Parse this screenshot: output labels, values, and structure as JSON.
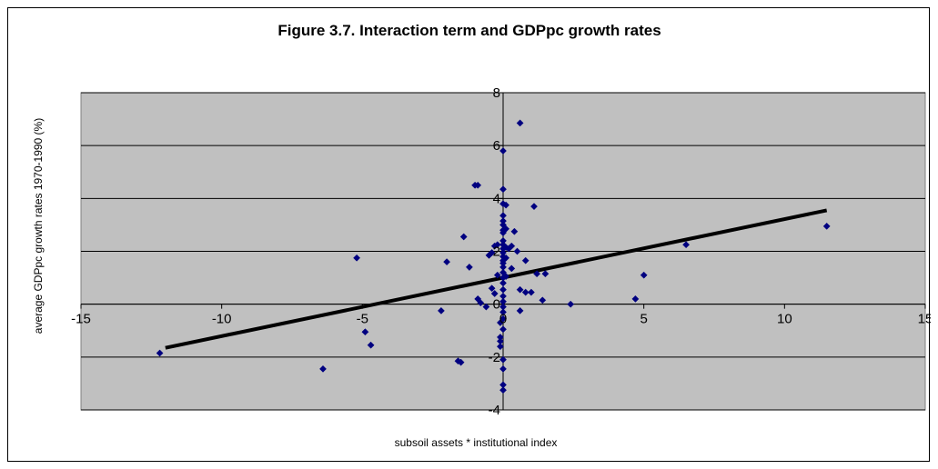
{
  "chart_data": {
    "type": "scatter",
    "title": "Figure 3.7. Interaction term and GDPpc growth rates",
    "xlabel": "subsoil assets * institutional index",
    "ylabel": "average GDPpc growth rates 1970-1990 (%)",
    "xlim": [
      -15,
      15
    ],
    "ylim": [
      -4,
      8
    ],
    "x_ticks": [
      -15,
      -10,
      -5,
      0,
      5,
      10,
      15
    ],
    "y_ticks": [
      -4,
      -2,
      0,
      2,
      4,
      6,
      8
    ],
    "x_tick_labels": [
      "-15",
      "-10",
      "-5",
      "0",
      "5",
      "10",
      "15"
    ],
    "y_tick_labels": [
      "-4",
      "-2",
      "0",
      "2",
      "4",
      "6",
      "8"
    ],
    "grid": "horizontal major gridlines",
    "legend": "none",
    "colors": {
      "plot_area": "#c0c0c0",
      "points": "#000080",
      "trend_line": "#000000",
      "gridlines": "#000000"
    },
    "series": [
      {
        "type": "scatter",
        "points": [
          [
            -12.2,
            -1.85
          ],
          [
            -6.4,
            -2.45
          ],
          [
            -5.2,
            1.75
          ],
          [
            -4.9,
            -1.05
          ],
          [
            -4.7,
            -1.55
          ],
          [
            -2.2,
            -0.25
          ],
          [
            -2.0,
            1.6
          ],
          [
            -1.6,
            -2.15
          ],
          [
            -1.5,
            -2.2
          ],
          [
            -1.4,
            2.55
          ],
          [
            -1.2,
            1.4
          ],
          [
            -1.0,
            4.5
          ],
          [
            -0.9,
            4.5
          ],
          [
            -0.9,
            0.2
          ],
          [
            -0.8,
            0.05
          ],
          [
            -0.6,
            -0.1
          ],
          [
            -0.5,
            1.85
          ],
          [
            -0.4,
            1.95
          ],
          [
            -0.4,
            0.6
          ],
          [
            -0.3,
            2.2
          ],
          [
            -0.3,
            0.4
          ],
          [
            -0.2,
            1.1
          ],
          [
            -0.2,
            2.25
          ],
          [
            -0.1,
            -0.7
          ],
          [
            -0.1,
            -1.25
          ],
          [
            -0.1,
            -1.4
          ],
          [
            -0.1,
            -1.6
          ],
          [
            0.0,
            5.8
          ],
          [
            0.0,
            4.35
          ],
          [
            0.0,
            3.8
          ],
          [
            0.0,
            3.35
          ],
          [
            0.0,
            3.15
          ],
          [
            0.0,
            3.0
          ],
          [
            0.0,
            2.8
          ],
          [
            0.0,
            2.7
          ],
          [
            0.0,
            2.4
          ],
          [
            0.0,
            2.25
          ],
          [
            0.0,
            2.1
          ],
          [
            0.0,
            1.95
          ],
          [
            0.0,
            1.8
          ],
          [
            0.0,
            1.65
          ],
          [
            0.0,
            1.55
          ],
          [
            0.0,
            1.4
          ],
          [
            0.0,
            1.2
          ],
          [
            0.0,
            1.0
          ],
          [
            0.0,
            0.8
          ],
          [
            0.0,
            0.55
          ],
          [
            0.0,
            0.3
          ],
          [
            0.0,
            0.1
          ],
          [
            0.0,
            -0.1
          ],
          [
            0.0,
            -0.3
          ],
          [
            0.0,
            -0.55
          ],
          [
            0.0,
            -0.95
          ],
          [
            0.0,
            -2.1
          ],
          [
            0.0,
            -2.45
          ],
          [
            0.0,
            -3.05
          ],
          [
            0.0,
            -3.25
          ],
          [
            0.1,
            3.75
          ],
          [
            0.1,
            2.85
          ],
          [
            0.1,
            2.15
          ],
          [
            0.1,
            1.75
          ],
          [
            0.1,
            1.05
          ],
          [
            0.2,
            2.1
          ],
          [
            0.3,
            2.2
          ],
          [
            0.3,
            1.35
          ],
          [
            0.4,
            2.75
          ],
          [
            0.5,
            2.0
          ],
          [
            0.6,
            6.85
          ],
          [
            0.6,
            0.55
          ],
          [
            0.6,
            -0.25
          ],
          [
            0.8,
            1.65
          ],
          [
            0.8,
            0.45
          ],
          [
            1.0,
            0.45
          ],
          [
            1.1,
            3.7
          ],
          [
            1.2,
            1.15
          ],
          [
            1.4,
            0.15
          ],
          [
            1.5,
            1.15
          ],
          [
            2.4,
            0.0
          ],
          [
            4.7,
            0.2
          ],
          [
            5.0,
            1.1
          ],
          [
            6.5,
            2.25
          ],
          [
            11.5,
            2.95
          ]
        ]
      },
      {
        "type": "line",
        "name": "",
        "points": [
          [
            -12.0,
            -1.65
          ],
          [
            11.5,
            3.55
          ]
        ]
      }
    ]
  }
}
